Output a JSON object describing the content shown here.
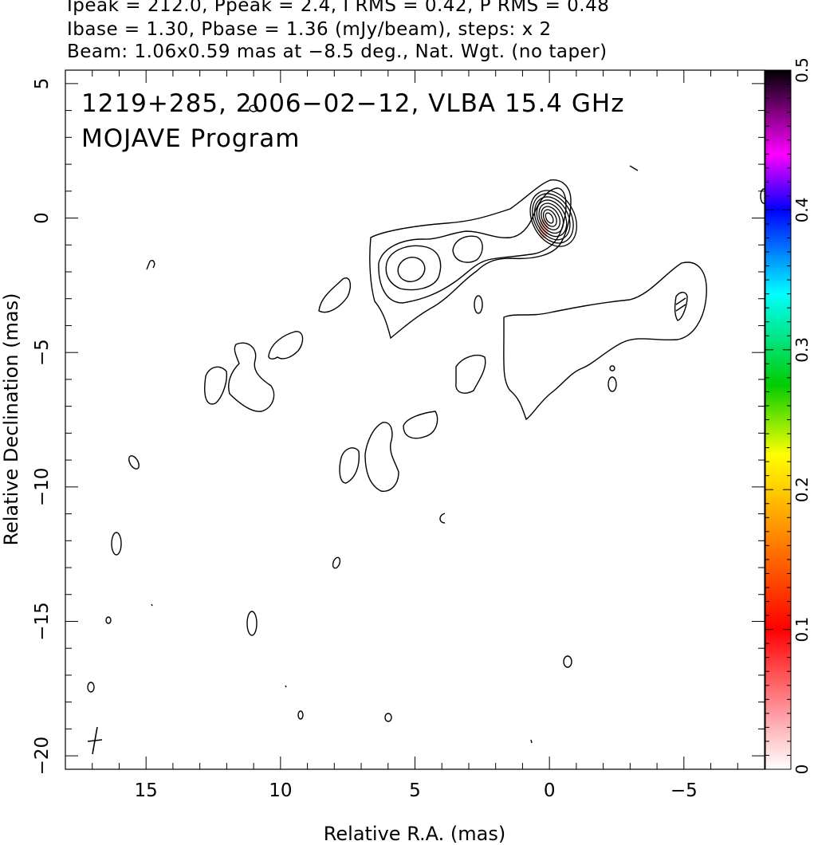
{
  "header": {
    "line1": "Ipeak = 212.0, Ppeak = 2.4, I RMS = 0.42, P RMS = 0.48",
    "line2": "Ibase = 1.30, Pbase = 1.36 (mJy/beam), steps: x 2",
    "line3": "Beam: 1.06x0.59 mas at −8.5 deg., Nat. Wgt. (no taper)"
  },
  "chart_data": {
    "type": "contour",
    "title": "1219+285, 2006−02−12, VLBA 15.4 GHz",
    "subtitle": "MOJAVE Program",
    "xlabel": "Relative R.A. (mas)",
    "ylabel": "Relative Declination (mas)",
    "xlim": [
      18,
      -8
    ],
    "ylim": [
      -20.5,
      5.5
    ],
    "x_ticks": [
      15,
      10,
      5,
      0,
      -5
    ],
    "x_tick_labels": [
      "15",
      "10",
      "5",
      "0",
      "−5"
    ],
    "y_ticks": [
      5,
      0,
      -5,
      -10,
      -15,
      -20
    ],
    "y_tick_labels": [
      "5",
      "0",
      "−5",
      "−10",
      "−15",
      "−20"
    ],
    "peak_position": [
      0,
      0
    ],
    "contour_base_mJy_per_beam": 1.3,
    "contour_step_factor": 2,
    "n_core_contours": 8,
    "jet_components": [
      {
        "x": 5.2,
        "y": -1.9
      },
      {
        "x": 3.0,
        "y": -1.0
      },
      {
        "x": 2.7,
        "y": -3.1
      }
    ],
    "secondary_feature": {
      "x": -5.0,
      "y": -3.2
    },
    "beam": {
      "major_mas": 1.06,
      "minor_mas": 0.59,
      "pa_deg": -8.5,
      "position": [
        17.0,
        -19.6
      ]
    },
    "colorbar": {
      "label_min": "0",
      "ticks": [
        "0",
        "0.1",
        "0.2",
        "0.3",
        "0.4",
        "0.5"
      ],
      "range": [
        0,
        0.5
      ]
    }
  }
}
